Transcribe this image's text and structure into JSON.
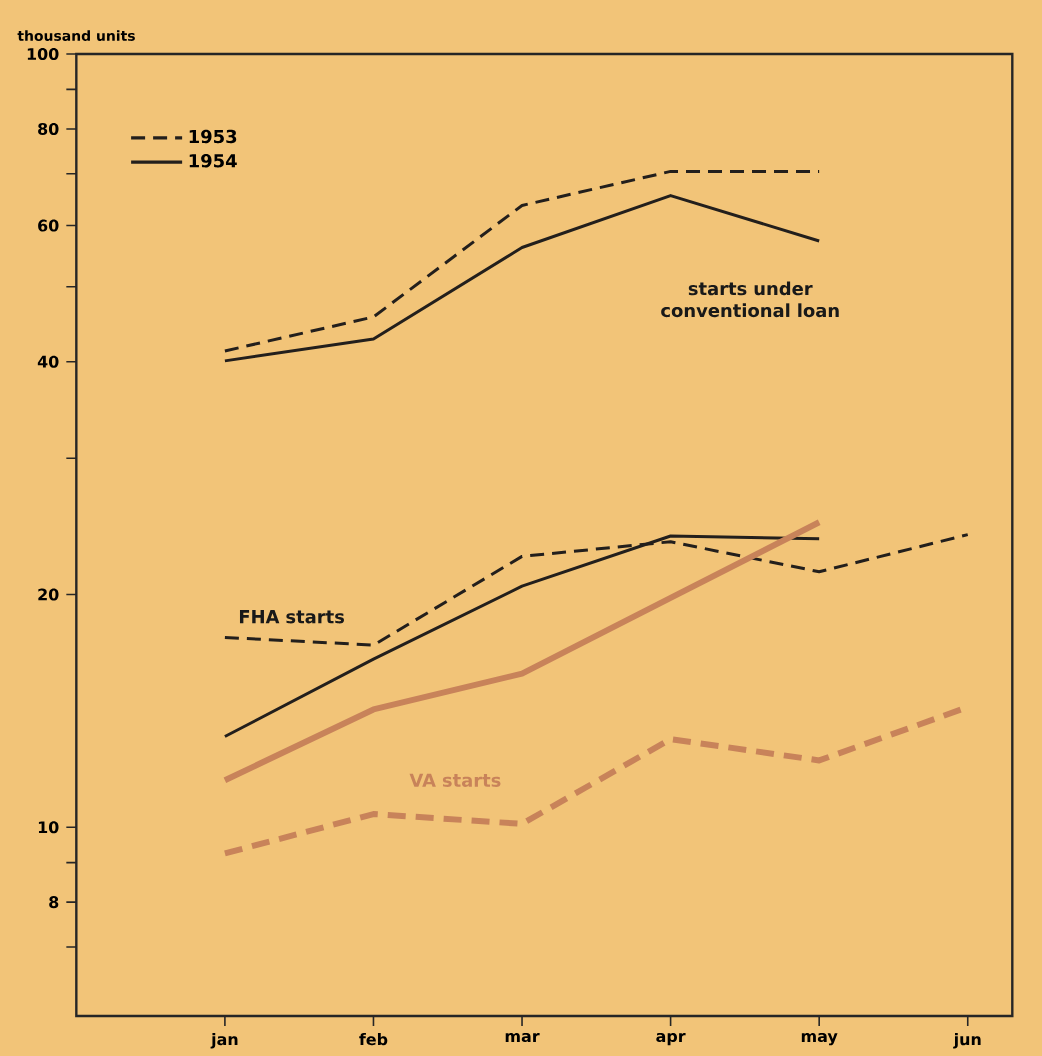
{
  "chart_data": {
    "type": "line",
    "ylabel": "thousand units",
    "categories": [
      "jan",
      "feb",
      "mar",
      "apr",
      "may",
      "jun"
    ],
    "log": "y",
    "ylim": [
      5.7,
      100
    ],
    "yticks": [
      {
        "value": 7,
        "label": null
      },
      8,
      {
        "value": 9,
        "label": null
      },
      10,
      20,
      {
        "value": 30,
        "label": null
      },
      40,
      {
        "value": 50,
        "label": null
      },
      60,
      {
        "value": 70,
        "label": null
      },
      80,
      {
        "value": 90,
        "label": null
      },
      100
    ],
    "legend": "top left",
    "series": [
      {
        "name": "1953",
        "color": "#231f1c",
        "line_style": "dashed",
        "values": [
          41.3,
          45.7,
          63.7,
          70.5,
          70.5,
          null
        ]
      },
      {
        "name": "1954",
        "color": "#231f1c",
        "line_style": "solid",
        "values": [
          40.1,
          42.8,
          56.2,
          65.6,
          57.3,
          null
        ]
      },
      {
        "color": "#231f1c",
        "line_style": "dashed",
        "values": [
          17.6,
          17.2,
          22.4,
          23.4,
          21.4,
          23.9
        ]
      },
      {
        "color": "#231f1c",
        "line_style": "solid",
        "values": [
          13.1,
          16.5,
          20.5,
          23.8,
          23.6,
          null
        ]
      },
      {
        "color": "#c8835a",
        "line_style": "solid",
        "values": [
          11.5,
          14.2,
          15.8,
          19.8,
          24.8,
          null
        ]
      },
      {
        "color": "#c8835a",
        "line_style": "dashed",
        "values": [
          9.25,
          10.4,
          10.1,
          13.0,
          12.2,
          14.3
        ]
      }
    ],
    "annotations": [
      "starts under conventional loan",
      "FHA starts",
      "VA starts"
    ]
  }
}
